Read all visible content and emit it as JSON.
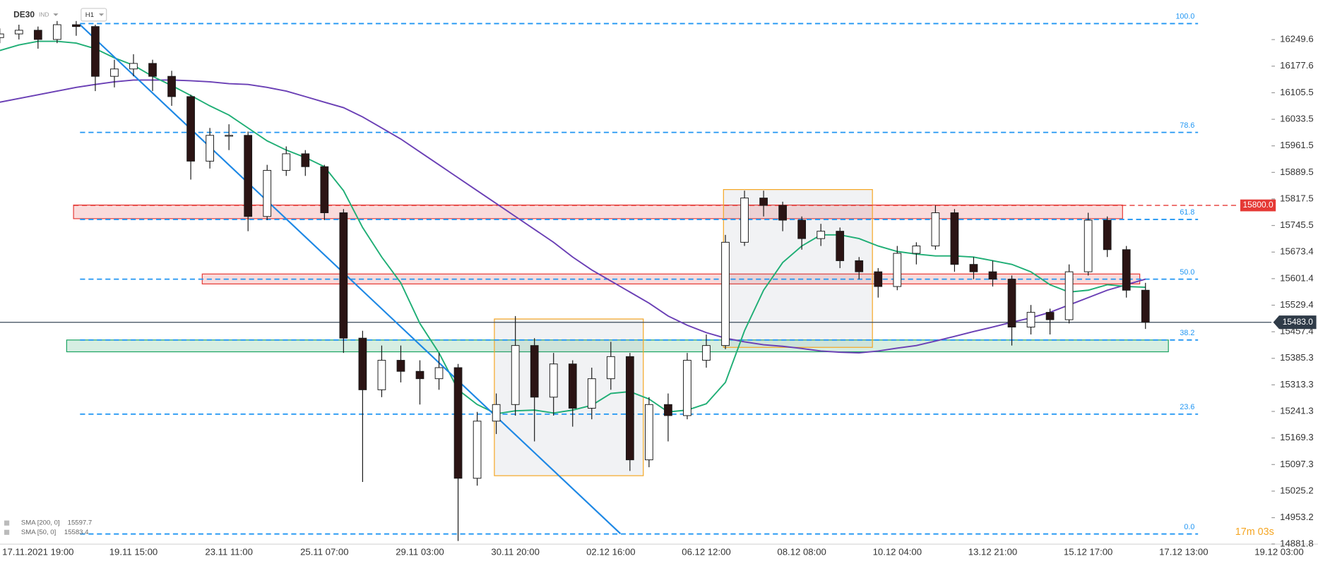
{
  "chart_data": {
    "type": "candlestick",
    "symbol": "DE30",
    "market": "IND",
    "interval": "H1",
    "timer": "17m 03s",
    "categories": [
      null,
      null,
      "17.11.2021 19:00",
      null,
      null,
      null,
      null,
      "19.11 15:00",
      null,
      null,
      null,
      null,
      "23.11 11:00",
      null,
      null,
      null,
      null,
      "25.11 07:00",
      null,
      null,
      null,
      null,
      "29.11 03:00",
      null,
      null,
      null,
      null,
      "30.11 20:00",
      null,
      null,
      null,
      null,
      "02.12 16:00",
      null,
      null,
      null,
      null,
      "06.12 12:00",
      null,
      null,
      null,
      null,
      "08.12 08:00",
      null,
      null,
      null,
      null,
      "10.12 04:00",
      null,
      null,
      null,
      null,
      "13.12 21:00",
      null,
      null,
      null,
      null,
      "15.12 17:00",
      null,
      null,
      null,
      null,
      "17.12 13:00",
      null,
      null,
      null,
      null,
      "19.12 03:00"
    ],
    "open": [
      16255,
      16265,
      16275,
      16250,
      16290,
      16285,
      16150,
      16170,
      16185,
      16150,
      16095,
      15920,
      15990,
      15990,
      15770,
      15895,
      15940,
      15905,
      15780,
      15440,
      15300,
      15380,
      15350,
      15330,
      15360,
      15060,
      15215,
      15260,
      15420,
      15280,
      15370,
      15250,
      15330,
      15390,
      15110,
      15260,
      15230,
      15380,
      15420,
      15700,
      15820,
      15800,
      15760,
      15710,
      15730,
      15650,
      15620,
      15580,
      15670,
      15690,
      15780,
      15640,
      15620,
      15600,
      15470,
      15510,
      15490,
      15620,
      15760,
      15680,
      15570,
      null,
      null,
      null,
      null,
      null,
      null,
      null
    ],
    "high": [
      16280,
      16290,
      16285,
      16300,
      16300,
      16290,
      16195,
      16210,
      16195,
      16165,
      16100,
      16010,
      16020,
      16000,
      15910,
      15960,
      15950,
      15910,
      15790,
      15460,
      15420,
      15420,
      15380,
      15400,
      15370,
      15240,
      15290,
      15500,
      15440,
      15400,
      15380,
      15360,
      15430,
      15400,
      15280,
      15290,
      15400,
      15450,
      15720,
      15840,
      15840,
      15810,
      15770,
      15750,
      15740,
      15660,
      15630,
      15690,
      15700,
      15800,
      15790,
      15660,
      15650,
      15610,
      15530,
      15520,
      15640,
      15780,
      15770,
      15690,
      15590,
      null,
      null,
      null,
      null,
      null,
      null,
      null
    ],
    "low": [
      16240,
      16250,
      16225,
      16240,
      16260,
      16110,
      16120,
      16150,
      16110,
      16070,
      15870,
      15900,
      15950,
      15730,
      15760,
      15880,
      15880,
      15760,
      15400,
      15050,
      15280,
      15320,
      15260,
      15300,
      14890,
      15040,
      15180,
      15230,
      15160,
      15230,
      15200,
      15220,
      15300,
      15080,
      15090,
      15160,
      15220,
      15360,
      15410,
      15690,
      15770,
      15730,
      15680,
      15690,
      15630,
      15600,
      15550,
      15570,
      15640,
      15680,
      15620,
      15600,
      15580,
      15420,
      15450,
      15450,
      15480,
      15610,
      15660,
      15550,
      15465,
      null,
      null,
      null,
      null,
      null,
      null,
      null
    ],
    "close": [
      16265,
      16275,
      16250,
      16290,
      16285,
      16150,
      16170,
      16185,
      16150,
      16095,
      15920,
      15990,
      15990,
      15770,
      15895,
      15940,
      15905,
      15780,
      15440,
      15300,
      15380,
      15350,
      15330,
      15360,
      15060,
      15215,
      15260,
      15420,
      15280,
      15370,
      15250,
      15330,
      15390,
      15110,
      15260,
      15230,
      15380,
      15420,
      15700,
      15820,
      15800,
      15760,
      15710,
      15730,
      15650,
      15620,
      15580,
      15670,
      15690,
      15780,
      15640,
      15620,
      15600,
      15470,
      15510,
      15490,
      15620,
      15760,
      15680,
      15570,
      15483,
      null,
      null,
      null,
      null,
      null,
      null,
      null
    ],
    "up_color": "#ffffff",
    "down_color": "#2b1414",
    "series": [
      {
        "name": "SMA [200, 0]",
        "last": 15597.7,
        "color": "#6a3fb5",
        "values": [
          16080,
          16090,
          16100,
          16110,
          16120,
          16128,
          16135,
          16140,
          16140,
          16140,
          16138,
          16135,
          16130,
          16128,
          16120,
          16110,
          16095,
          16080,
          16065,
          16040,
          16010,
          15980,
          15945,
          15910,
          15875,
          15840,
          15805,
          15770,
          15735,
          15700,
          15660,
          15625,
          15595,
          15565,
          15535,
          15500,
          15475,
          15455,
          15440,
          15430,
          15422,
          15418,
          15412,
          15405,
          15402,
          15400,
          15405,
          15413,
          15420,
          15432,
          15445,
          15458,
          15470,
          15483,
          15495,
          15510,
          15530,
          15550,
          15570,
          15585,
          15600,
          null,
          null,
          null,
          null,
          null,
          null,
          null
        ]
      },
      {
        "name": "SMA [50, 0]",
        "last": 15583.4,
        "color": "#1fae75",
        "values": [
          16220,
          16235,
          16245,
          16245,
          16240,
          16225,
          16200,
          16180,
          16150,
          16125,
          16098,
          16070,
          16045,
          16010,
          15975,
          15950,
          15930,
          15905,
          15840,
          15740,
          15660,
          15590,
          15480,
          15400,
          15300,
          15260,
          15235,
          15243,
          15245,
          15237,
          15245,
          15258,
          15290,
          15295,
          15275,
          15240,
          15245,
          15262,
          15320,
          15460,
          15570,
          15645,
          15690,
          15720,
          15720,
          15710,
          15690,
          15675,
          15668,
          15663,
          15663,
          15660,
          15650,
          15640,
          15620,
          15585,
          15565,
          15570,
          15585,
          15580,
          15578,
          null,
          null,
          null,
          null,
          null,
          null,
          null
        ]
      }
    ],
    "trendline": {
      "x": [
        4.2,
        32.5
      ],
      "y": [
        16290,
        14910
      ],
      "color": "#1e88e5"
    },
    "fib_levels": [
      {
        "label": {
          "value": 100,
          "label": "100.0"
        },
        "price": 16293
      },
      {
        "label": 78.6,
        "price": 15998
      },
      {
        "label": 61.8,
        "price": 15762
      },
      {
        "label": {
          "value": 50,
          "label": "50.0"
        },
        "price": 15600
      },
      {
        "label": 38.2,
        "price": 15435
      },
      {
        "label": 23.6,
        "price": 15234
      },
      {
        "label": {
          "value": 0,
          "label": "0.0"
        },
        "price": 14909
      }
    ],
    "fib_color": "#2196f3",
    "zones": [
      {
        "x": [
          3.86,
          58.8
        ],
        "y": [
          15764,
          15801
        ],
        "color": "#e53935"
      },
      {
        "x": [
          10.6,
          59.7
        ],
        "y": [
          15587,
          15614
        ],
        "color": "#e53935"
      },
      {
        "x": [
          3.5,
          61.2
        ],
        "y": [
          15403,
          15435
        ],
        "color": "#1aa260"
      }
    ],
    "boxes": [
      {
        "x": [
          25.9,
          33.7
        ],
        "y": [
          15067,
          15492
        ],
        "color": "#f5a623"
      },
      {
        "x": [
          37.9,
          45.7
        ],
        "y": [
          15415,
          15843
        ],
        "color": "#f5a623"
      }
    ],
    "resistance": {
      "value": 15800,
      "label": "15800.0",
      "x": 3.86,
      "color": "#e53935"
    },
    "last_price": {
      "value": 15483,
      "label": "15483.0"
    },
    "ylim": [
      14870,
      16357
    ],
    "yticks": [
      16249.6,
      16177.6,
      16105.5,
      16033.5,
      15961.5,
      15889.5,
      15817.5,
      15745.5,
      15673.4,
      15601.4,
      15529.4,
      15457.4,
      15385.3,
      15313.3,
      15241.3,
      15169.3,
      15097.3,
      15025.2,
      14953.2,
      14881.8
    ]
  }
}
